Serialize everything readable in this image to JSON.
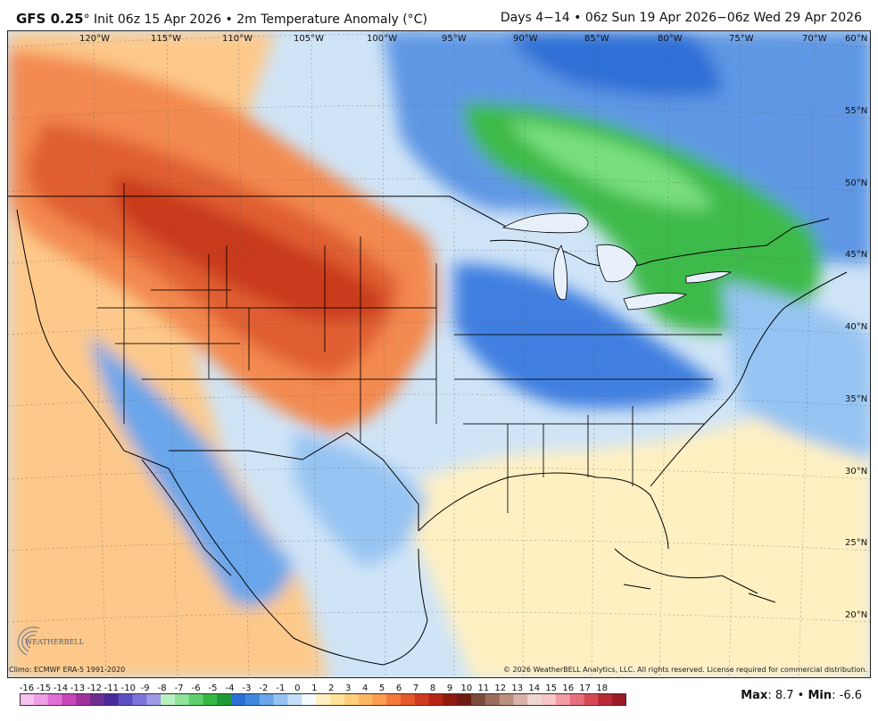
{
  "header": {
    "model": "GFS 0.25",
    "degree_mark": "°",
    "init": " Init 06z 15 Apr 2026",
    "bullet": " • ",
    "field": "2m Temperature Anomaly (°C)",
    "days": "Days 4−14",
    "period": "06z Sun 19 Apr 2026−06z Wed 29 Apr 2026"
  },
  "map": {
    "lon_labels": [
      "120°W",
      "115°W",
      "110°W",
      "105°W",
      "100°W",
      "95°W",
      "90°W",
      "85°W",
      "80°W",
      "75°W",
      "70°W"
    ],
    "lat_labels": [
      "60°N",
      "55°N",
      "50°N",
      "45°N",
      "40°N",
      "35°N",
      "30°N",
      "25°N",
      "20°N"
    ]
  },
  "footer": {
    "climo": "Climo: ECMWF ERA-5 1991-2020",
    "copyright": "© 2026 WeatherBELL Analytics, LLC. All rights reserved. License required for commercial distribution.",
    "logo_text": "WEATHERBELL",
    "max_label": "Max",
    "max_value": "8.7",
    "min_label": "Min",
    "min_value": "-6.6"
  },
  "colorbar": {
    "ticks": [
      "-16",
      "-15",
      "-14",
      "-13",
      "-12",
      "-11",
      "-10",
      "-9",
      "-8",
      "-7",
      "-6",
      "-5",
      "-4",
      "-3",
      "-2",
      "-1",
      "0",
      "1",
      "2",
      "3",
      "4",
      "5",
      "6",
      "7",
      "8",
      "9",
      "10",
      "11",
      "12",
      "13",
      "14",
      "15",
      "16",
      "17",
      "18"
    ],
    "colors": [
      "#f7c2ef",
      "#ef9fe6",
      "#e06fd6",
      "#c646b9",
      "#a3309a",
      "#6d2f8f",
      "#4a2a9a",
      "#5b4fc4",
      "#7c74d8",
      "#9f9ae6",
      "#b9f0c0",
      "#8fe39a",
      "#5fd06d",
      "#33b844",
      "#1d9a34",
      "#2b6fd6",
      "#3f88e0",
      "#6aa6ea",
      "#96c4f2",
      "#c2def8",
      "#f4fbff",
      "#fff0c2",
      "#ffe29a",
      "#fecf7c",
      "#fdb866",
      "#fb9d50",
      "#f47a3c",
      "#e6572b",
      "#d23a1f",
      "#b82416",
      "#8f1a10",
      "#6d1a12",
      "#7a4a3a",
      "#9c6c5a",
      "#bb8f80",
      "#d8b2a8",
      "#f0d6d0",
      "#f6c5c8",
      "#f29ca4",
      "#e86f7c",
      "#d64a58",
      "#b82a38",
      "#9a1a28"
    ]
  }
}
